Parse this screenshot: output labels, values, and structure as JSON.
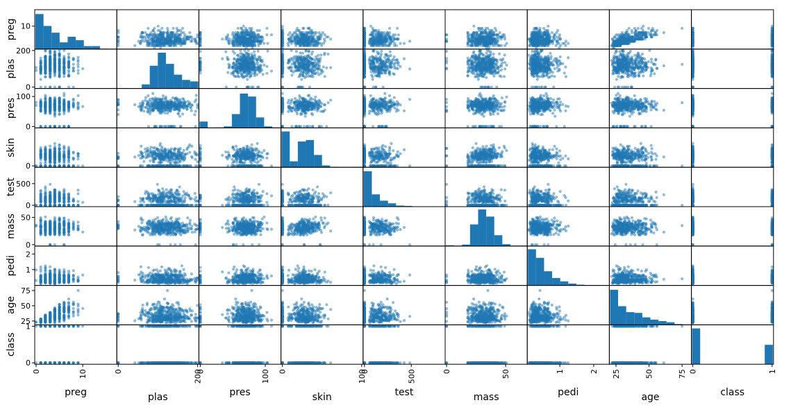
{
  "chart_data": {
    "type": "scatter_matrix",
    "title": "",
    "variables": [
      "preg",
      "plas",
      "pres",
      "skin",
      "test",
      "mass",
      "pedi",
      "age",
      "class"
    ],
    "ranges": {
      "preg": [
        0,
        17
      ],
      "plas": [
        0,
        199
      ],
      "pres": [
        0,
        122
      ],
      "skin": [
        0,
        99
      ],
      "test": [
        0,
        846
      ],
      "mass": [
        0,
        67.1
      ],
      "pedi": [
        0.078,
        2.42
      ],
      "age": [
        21,
        81
      ],
      "class": [
        0,
        1
      ]
    },
    "y_ticks": {
      "preg": [
        "10"
      ],
      "plas": [
        "0",
        "200"
      ],
      "pres": [
        "0",
        "100"
      ],
      "skin": [
        "0"
      ],
      "test": [
        "0",
        "500"
      ],
      "mass": [
        "0",
        "50"
      ],
      "pedi": [
        "1",
        "2"
      ],
      "age": [
        "25",
        "50",
        "75"
      ],
      "class": [
        "0",
        "1"
      ]
    },
    "x_ticks": {
      "preg": [
        "0",
        "10"
      ],
      "plas": [
        "0",
        "200"
      ],
      "pres": [
        "0",
        "100"
      ],
      "skin": [
        "0",
        "100"
      ],
      "test": [
        "0",
        "500"
      ],
      "mass": [
        "0",
        "50"
      ],
      "pedi": [
        "1",
        "2"
      ],
      "age": [
        "25",
        "50",
        "75"
      ],
      "class": [
        "0",
        "1"
      ]
    },
    "histograms": {
      "preg": [
        0.94,
        0.62,
        0.44,
        0.18,
        0.33,
        0.24,
        0.08,
        0.08,
        0.01,
        0.0
      ],
      "plas": [
        0.01,
        0.0,
        0.0,
        0.11,
        0.61,
        0.96,
        0.66,
        0.37,
        0.23,
        0.19
      ],
      "pres": [
        0.17,
        0.0,
        0.01,
        0.04,
        0.37,
        0.92,
        0.84,
        0.28,
        0.04,
        0.01
      ],
      "skin": [
        0.96,
        0.16,
        0.69,
        0.73,
        0.33,
        0.05,
        0.01,
        0.0,
        0.0,
        0.01
      ],
      "test": [
        0.95,
        0.33,
        0.16,
        0.09,
        0.03,
        0.02,
        0.01,
        0.01,
        0.01,
        0.0
      ],
      "mass": [
        0.02,
        0.0,
        0.04,
        0.58,
        0.98,
        0.79,
        0.29,
        0.05,
        0.01,
        0.01
      ],
      "pedi": [
        0.97,
        0.74,
        0.38,
        0.2,
        0.11,
        0.05,
        0.02,
        0.01,
        0.01,
        0.0
      ],
      "age": [
        0.94,
        0.5,
        0.34,
        0.32,
        0.2,
        0.14,
        0.1,
        0.07,
        0.02,
        0.01
      ],
      "class": [
        0.96,
        0,
        0,
        0,
        0,
        0,
        0,
        0,
        0,
        0.52
      ]
    },
    "point_color": "#1f77b4",
    "axis_color": "#000000"
  }
}
